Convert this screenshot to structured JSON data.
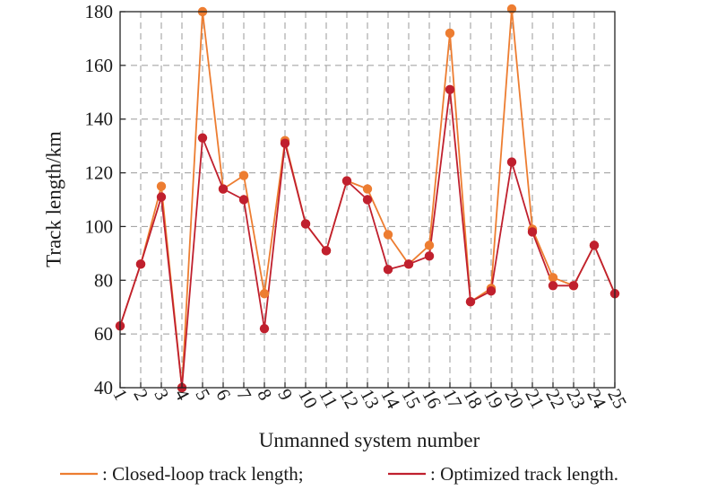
{
  "chart_data": {
    "type": "line",
    "xlabel": "Unmanned system number",
    "ylabel": "Track length/km",
    "ylim": [
      40,
      180
    ],
    "yticks": [
      40,
      60,
      80,
      100,
      120,
      140,
      160,
      180
    ],
    "categories": [
      "1",
      "2",
      "3",
      "4",
      "5",
      "6",
      "7",
      "8",
      "9",
      "10",
      "11",
      "12",
      "13",
      "14",
      "15",
      "16",
      "17",
      "18",
      "19",
      "20",
      "21",
      "22",
      "23",
      "24",
      "25"
    ],
    "grid": true,
    "legend_placement": "bottom",
    "series": [
      {
        "name": ": Closed-loop track length;",
        "color": "#ED7D31",
        "values": [
          63,
          86,
          115,
          40,
          180,
          114,
          119,
          75,
          132,
          101,
          91,
          117,
          114,
          97,
          86,
          93,
          172,
          72,
          77,
          181,
          99,
          81,
          78,
          93,
          75
        ]
      },
      {
        "name": ": Optimized track length.",
        "color": "#C0202E",
        "values": [
          63,
          86,
          111,
          40,
          133,
          114,
          110,
          62,
          131,
          101,
          91,
          117,
          110,
          84,
          86,
          89,
          151,
          72,
          76,
          124,
          98,
          78,
          78,
          93,
          75
        ]
      }
    ]
  }
}
